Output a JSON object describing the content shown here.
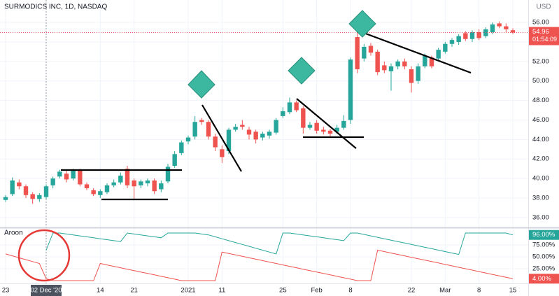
{
  "chart_data": [
    {
      "type": "candlestick",
      "title": "SURMODICS INC, 1D, NASDAQ",
      "currency": "USD",
      "categories": [
        "23",
        null,
        null,
        null,
        null,
        null,
        "02 Dec '20",
        null,
        null,
        null,
        null,
        null,
        null,
        null,
        "14",
        null,
        null,
        null,
        null,
        "21",
        null,
        null,
        null,
        null,
        null,
        null,
        null,
        "2021",
        null,
        null,
        null,
        null,
        "11",
        null,
        null,
        null,
        null,
        null,
        null,
        null,
        null,
        "25",
        null,
        null,
        null,
        null,
        "Feb",
        null,
        null,
        null,
        null,
        "8",
        null,
        null,
        null,
        null,
        null,
        null,
        null,
        null,
        "22",
        null,
        null,
        null,
        null,
        "Mar",
        null,
        null,
        null,
        null,
        "8",
        null,
        null,
        null,
        null,
        "15"
      ],
      "crosshair": 6,
      "open": [
        37.8,
        38.4,
        39.6,
        39.2,
        38.4,
        37.9,
        38.1,
        39.3,
        40.2,
        40.5,
        40.0,
        40.8,
        39.4,
        38.8,
        38.3,
        38.6,
        39.3,
        39.6,
        41.0,
        39.8,
        39.3,
        39.5,
        39.8,
        38.9,
        39.7,
        41.3,
        42.6,
        43.8,
        44.3,
        46.0,
        45.8,
        44.3,
        43.0,
        42.8,
        45.0,
        45.5,
        45.0,
        44.8,
        44.2,
        44.4,
        44.7,
        46.4,
        46.8,
        47.8,
        47.2,
        45.2,
        45.7,
        45.0,
        44.9,
        44.8,
        45.2,
        46.0,
        54.5,
        52.3,
        53.6,
        53.0,
        51.6,
        51.0,
        51.5,
        52.0,
        51.2,
        50.0,
        51.5,
        52.4,
        52.3,
        53.0,
        53.8,
        54.0,
        54.9,
        54.3,
        55.0,
        54.6,
        55.0,
        55.9,
        55.6,
        55.2
      ],
      "high": [
        38.3,
        40.1,
        39.9,
        39.4,
        38.6,
        38.5,
        39.4,
        40.2,
        40.9,
        40.8,
        41.0,
        41.0,
        39.6,
        39.0,
        38.9,
        39.5,
        39.9,
        40.6,
        41.3,
        40.0,
        39.9,
        40.0,
        40.0,
        39.8,
        41.5,
        42.8,
        43.9,
        44.4,
        46.4,
        46.2,
        46.0,
        44.6,
        43.4,
        45.2,
        45.6,
        46.0,
        45.3,
        45.0,
        44.8,
        45.0,
        46.2,
        47.3,
        48.3,
        48.0,
        47.4,
        45.8,
        46.0,
        45.3,
        45.1,
        45.5,
        46.5,
        52.4,
        55.6,
        53.8,
        53.9,
        53.2,
        52.0,
        51.8,
        52.2,
        52.3,
        51.5,
        51.8,
        52.8,
        52.6,
        53.4,
        54.0,
        54.4,
        54.8,
        55.1,
        55.2,
        55.3,
        55.5,
        56.0,
        56.1,
        55.9,
        55.4
      ],
      "low": [
        37.6,
        38.2,
        38.9,
        38.0,
        37.4,
        37.6,
        37.9,
        39.0,
        40.0,
        39.6,
        39.8,
        39.2,
        38.8,
        38.2,
        38.0,
        38.4,
        39.1,
        39.4,
        39.0,
        37.9,
        39.0,
        39.2,
        38.4,
        38.6,
        39.5,
        41.1,
        42.4,
        43.5,
        44.0,
        45.5,
        44.0,
        42.8,
        41.6,
        42.5,
        44.8,
        45.0,
        44.0,
        43.6,
        43.9,
        44.1,
        44.5,
        46.2,
        46.6,
        46.8,
        44.6,
        45.0,
        44.6,
        44.5,
        44.3,
        44.6,
        45.0,
        45.6,
        50.8,
        52.0,
        52.6,
        50.6,
        50.8,
        49.0,
        51.2,
        51.2,
        48.8,
        49.7,
        51.3,
        51.3,
        52.1,
        52.8,
        53.5,
        53.7,
        54.1,
        54.0,
        54.2,
        54.4,
        54.8,
        55.4,
        55.0,
        54.8
      ],
      "close": [
        38.1,
        39.8,
        39.2,
        38.3,
        37.9,
        38.3,
        39.2,
        40.0,
        40.7,
        39.9,
        40.8,
        39.4,
        39.0,
        38.4,
        38.7,
        39.3,
        39.6,
        40.3,
        39.3,
        39.2,
        39.7,
        39.8,
        38.7,
        39.5,
        41.2,
        42.5,
        43.7,
        44.2,
        45.8,
        45.8,
        44.3,
        43.2,
        42.2,
        45.0,
        45.3,
        45.3,
        44.5,
        44.0,
        44.6,
        44.8,
        46.0,
        46.9,
        47.8,
        47.0,
        45.2,
        45.5,
        44.9,
        44.8,
        44.6,
        45.2,
        45.9,
        52.2,
        51.2,
        53.5,
        52.9,
        50.9,
        51.1,
        51.5,
        52.0,
        51.5,
        49.8,
        51.5,
        52.6,
        51.5,
        53.2,
        53.8,
        54.2,
        54.6,
        54.3,
        55.0,
        54.4,
        55.3,
        55.8,
        55.6,
        55.3,
        54.96
      ],
      "up_color": "#26a69a",
      "down_color": "#ef5350",
      "last_price": 54.96,
      "countdown": "01:54:09",
      "ylim": [
        35.2,
        58.3
      ],
      "yticks": [
        {
          "value": 36,
          "label": "36.00"
        },
        {
          "value": 38,
          "label": "38.00"
        },
        {
          "value": 40,
          "label": "40.00"
        },
        {
          "value": 42,
          "label": "42.00"
        },
        {
          "value": 44,
          "label": "44.00"
        },
        {
          "value": 46,
          "label": "46.00"
        },
        {
          "value": 48,
          "label": "48.00"
        },
        {
          "value": 50,
          "label": "50.00"
        },
        {
          "value": 52,
          "label": "52.00"
        },
        {
          "value": 54,
          "label": "54.00"
        },
        {
          "value": 56,
          "label": "56.00"
        }
      ],
      "grid": true
    },
    {
      "type": "line",
      "title": "Aroon",
      "series": [
        {
          "color": "#26a69a",
          "last_label": "96.00%",
          "values": [
            null,
            null,
            null,
            null,
            null,
            null,
            64,
            100,
            100,
            98,
            96,
            94,
            92,
            90,
            88,
            86,
            84,
            82,
            100,
            98,
            96,
            94,
            92,
            90,
            100,
            100,
            100,
            100,
            100,
            98,
            96,
            92,
            88,
            84,
            80,
            76,
            72,
            68,
            64,
            60,
            56,
            100,
            100,
            98,
            96,
            94,
            92,
            90,
            88,
            86,
            84,
            100,
            100,
            97,
            94,
            91,
            88,
            85,
            82,
            79,
            76,
            73,
            70,
            67,
            64,
            61,
            58,
            55,
            100,
            100,
            100,
            100,
            100,
            100,
            100,
            96
          ]
        },
        {
          "color": "#ef5350",
          "last_label": "4.00%",
          "values": [
            56,
            52,
            48,
            44,
            40,
            36,
            4,
            0,
            0,
            0,
            0,
            0,
            0,
            0,
            36,
            33,
            30,
            27,
            24,
            21,
            18,
            15,
            12,
            9,
            6,
            3,
            0,
            0,
            0,
            0,
            0,
            0,
            60,
            57,
            54,
            51,
            48,
            45,
            42,
            39,
            36,
            33,
            30,
            27,
            24,
            21,
            18,
            15,
            12,
            9,
            6,
            3,
            0,
            0,
            0,
            64,
            61,
            58,
            55,
            52,
            49,
            46,
            43,
            40,
            37,
            34,
            31,
            28,
            25,
            22,
            19,
            16,
            13,
            10,
            7,
            4
          ]
        }
      ],
      "ylim": [
        -5.9,
        110.3
      ],
      "yticks": [
        {
          "value": 25,
          "label": "25.00%"
        },
        {
          "value": 50,
          "label": "50.00%"
        },
        {
          "value": 75,
          "label": "75.00%"
        }
      ],
      "grid": true
    }
  ]
}
